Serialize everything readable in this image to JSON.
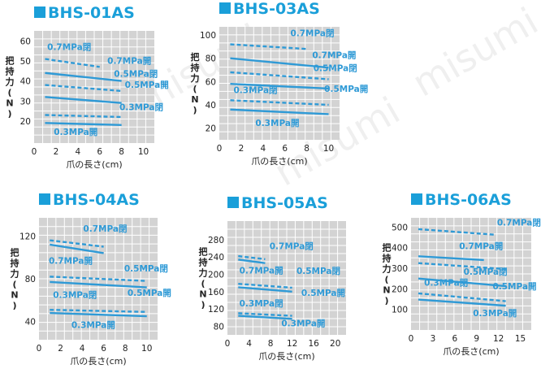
{
  "watermark": [
    "misumi",
    "misumi",
    "misumi"
  ],
  "colors": {
    "title": "#1a9fd9",
    "line": "#2f9ad6",
    "plot_bg": "#d3d3d3",
    "grid": "#ffffff"
  },
  "chart_data": [
    {
      "type": "line",
      "title": "BHS-01AS",
      "xlabel": "爪の長さ(cm)",
      "ylabel": "把持力(N)",
      "xlim": [
        0,
        11
      ],
      "ylim": [
        9,
        65
      ],
      "xticks": [
        0,
        2,
        4,
        6,
        8,
        10
      ],
      "yticks": [
        20,
        30,
        40,
        50,
        60
      ],
      "series": [
        {
          "name": "0.7MPa閉",
          "dashed": true,
          "x": [
            1,
            6
          ],
          "y": [
            51,
            47
          ]
        },
        {
          "name": "0.7MPa開",
          "dashed": false,
          "x": [
            1,
            8
          ],
          "y": [
            44,
            40
          ]
        },
        {
          "name": "0.5MPa閉",
          "dashed": true,
          "x": [
            1,
            8
          ],
          "y": [
            38,
            35
          ]
        },
        {
          "name": "0.5MPa開",
          "dashed": false,
          "x": [
            1,
            8
          ],
          "y": [
            32,
            29
          ]
        },
        {
          "name": "0.3MPa閉",
          "dashed": true,
          "x": [
            1,
            8
          ],
          "y": [
            23,
            22
          ]
        },
        {
          "name": "0.3MPa開",
          "dashed": false,
          "x": [
            1,
            8
          ],
          "y": [
            19,
            18
          ]
        }
      ],
      "annotations": [
        {
          "text": "0.7MPa閉",
          "x": 1.2,
          "y": 55.5
        },
        {
          "text": "0.7MPa開",
          "x": 6.7,
          "y": 48.5
        },
        {
          "text": "0.5MPa閉",
          "x": 7.3,
          "y": 42
        },
        {
          "text": "0.5MPa開",
          "x": 8.3,
          "y": 36.5
        },
        {
          "text": "0.3MPa閉",
          "x": 7.8,
          "y": 25.5
        },
        {
          "text": "0.3MPa開",
          "x": 1.8,
          "y": 13
        }
      ]
    },
    {
      "type": "line",
      "title": "BHS-03AS",
      "xlabel": "爪の長さ(cm)",
      "ylabel": "把持力(N)",
      "xlim": [
        0,
        11
      ],
      "ylim": [
        10,
        107
      ],
      "xticks": [
        0,
        2,
        4,
        6,
        8,
        10
      ],
      "yticks": [
        20,
        40,
        60,
        80,
        100
      ],
      "series": [
        {
          "name": "0.7MPa閉",
          "dashed": true,
          "x": [
            1,
            8
          ],
          "y": [
            92,
            88
          ]
        },
        {
          "name": "0.7MPa開",
          "dashed": false,
          "x": [
            1,
            10
          ],
          "y": [
            80,
            72
          ]
        },
        {
          "name": "0.5MPa閉",
          "dashed": true,
          "x": [
            1,
            10
          ],
          "y": [
            68,
            62
          ]
        },
        {
          "name": "0.5MPa開",
          "dashed": false,
          "x": [
            1,
            10
          ],
          "y": [
            58,
            54
          ]
        },
        {
          "name": "0.3MPa閉",
          "dashed": true,
          "x": [
            1,
            10
          ],
          "y": [
            44,
            40
          ]
        },
        {
          "name": "0.3MPa開",
          "dashed": false,
          "x": [
            1,
            10
          ],
          "y": [
            36,
            32
          ]
        }
      ],
      "annotations": [
        {
          "text": "0.7MPa閉",
          "x": 6.5,
          "y": 99
        },
        {
          "text": "0.7MPa開",
          "x": 8.5,
          "y": 80
        },
        {
          "text": "0.5MPa閉",
          "x": 8.6,
          "y": 69
        },
        {
          "text": "0.5MPa開",
          "x": 9.6,
          "y": 51
        },
        {
          "text": "0.3MPa閉",
          "x": 1.3,
          "y": 50
        },
        {
          "text": "0.3MPa開",
          "x": 3.3,
          "y": 22
        }
      ]
    },
    {
      "type": "line",
      "title": "BHS-04AS",
      "xlabel": "爪の長さ(cm)",
      "ylabel": "把持力(N)",
      "xlim": [
        0,
        11
      ],
      "ylim": [
        23,
        137
      ],
      "xticks": [
        0,
        2,
        4,
        6,
        8,
        10
      ],
      "yticks": [
        40,
        80,
        120
      ],
      "series": [
        {
          "name": "0.7MPa閉",
          "dashed": true,
          "x": [
            1,
            6
          ],
          "y": [
            116,
            110
          ]
        },
        {
          "name": "0.7MPa開",
          "dashed": false,
          "x": [
            1,
            6
          ],
          "y": [
            112,
            104
          ]
        },
        {
          "name": "0.5MPa閉",
          "dashed": true,
          "x": [
            1,
            10
          ],
          "y": [
            82,
            78
          ]
        },
        {
          "name": "0.5MPa開",
          "dashed": false,
          "x": [
            1,
            10
          ],
          "y": [
            77,
            72
          ]
        },
        {
          "name": "0.3MPa閉",
          "dashed": true,
          "x": [
            1,
            10
          ],
          "y": [
            51,
            49
          ]
        },
        {
          "name": "0.3MPa開",
          "dashed": false,
          "x": [
            1,
            10
          ],
          "y": [
            48,
            45
          ]
        }
      ],
      "annotations": [
        {
          "text": "0.7MPa閉",
          "x": 4.1,
          "y": 124
        },
        {
          "text": "0.7MPa開",
          "x": 0.9,
          "y": 94
        },
        {
          "text": "0.5MPa閉",
          "x": 7.9,
          "y": 87
        },
        {
          "text": "0.5MPa開",
          "x": 8.2,
          "y": 64
        },
        {
          "text": "0.3MPa閉",
          "x": 1.3,
          "y": 62
        },
        {
          "text": "0.3MPa開",
          "x": 3.0,
          "y": 34
        }
      ]
    },
    {
      "type": "line",
      "title": "BHS-05AS",
      "xlabel": "爪の長さ(cm)",
      "ylabel": "把持力(N)",
      "xlim": [
        0,
        22
      ],
      "ylim": [
        60,
        323
      ],
      "xticks": [
        0,
        4,
        8,
        12,
        16,
        20
      ],
      "yticks": [
        80,
        120,
        160,
        200,
        240,
        280
      ],
      "series": [
        {
          "name": "0.7MPa閉",
          "dashed": true,
          "x": [
            2,
            7
          ],
          "y": [
            242,
            235
          ]
        },
        {
          "name": "0.7MPa開",
          "dashed": false,
          "x": [
            2,
            7
          ],
          "y": [
            234,
            226
          ]
        },
        {
          "name": "0.5MPa閉",
          "dashed": true,
          "x": [
            2,
            12
          ],
          "y": [
            178,
            169
          ]
        },
        {
          "name": "0.5MPa開",
          "dashed": false,
          "x": [
            2,
            12
          ],
          "y": [
            170,
            160
          ]
        },
        {
          "name": "0.3MPa閉",
          "dashed": true,
          "x": [
            2,
            12
          ],
          "y": [
            110,
            104
          ]
        },
        {
          "name": "0.3MPa開",
          "dashed": false,
          "x": [
            2,
            12
          ],
          "y": [
            104,
            97
          ]
        }
      ],
      "annotations": [
        {
          "text": "0.7MPa閉",
          "x": 7.8,
          "y": 258
        },
        {
          "text": "0.7MPa開",
          "x": 2.2,
          "y": 202
        },
        {
          "text": "0.5MPa閉",
          "x": 12.8,
          "y": 201
        },
        {
          "text": "0.5MPa開",
          "x": 13.7,
          "y": 150
        },
        {
          "text": "0.3MPa閉",
          "x": 2.2,
          "y": 126
        },
        {
          "text": "0.3MPa開",
          "x": 10.0,
          "y": 80
        }
      ]
    },
    {
      "type": "line",
      "title": "BHS-06AS",
      "xlabel": "爪の長さ(cm)",
      "ylabel": "把持力(N)",
      "xlim": [
        0,
        16.5
      ],
      "ylim": [
        0,
        545
      ],
      "xticks": [
        0,
        3,
        6,
        9,
        12,
        15
      ],
      "yticks": [
        100,
        200,
        300,
        400,
        500
      ],
      "series": [
        {
          "name": "0.7MPa閉",
          "dashed": true,
          "x": [
            1,
            11.5
          ],
          "y": [
            490,
            463
          ]
        },
        {
          "name": "0.7MPa開",
          "dashed": false,
          "x": [
            1,
            10
          ],
          "y": [
            358,
            340
          ]
        },
        {
          "name": "0.5MPa閉",
          "dashed": true,
          "x": [
            1,
            13
          ],
          "y": [
            325,
            296
          ]
        },
        {
          "name": "0.5MPa開",
          "dashed": false,
          "x": [
            1,
            13
          ],
          "y": [
            250,
            213
          ]
        },
        {
          "name": "0.3MPa閉",
          "dashed": true,
          "x": [
            1,
            13
          ],
          "y": [
            178,
            140
          ]
        },
        {
          "name": "0.3MPa開",
          "dashed": false,
          "x": [
            1,
            13
          ],
          "y": [
            148,
            118
          ]
        }
      ],
      "annotations": [
        {
          "text": "0.7MPa閉",
          "x": 11.8,
          "y": 508
        },
        {
          "text": "0.7MPa開",
          "x": 6.6,
          "y": 392
        },
        {
          "text": "0.5MPa閉",
          "x": 7.2,
          "y": 269
        },
        {
          "text": "0.5MPa開",
          "x": 11.2,
          "y": 197
        },
        {
          "text": "0.3MPa閉",
          "x": 1.8,
          "y": 216
        },
        {
          "text": "0.3MPa開",
          "x": 8.5,
          "y": 68
        }
      ]
    }
  ]
}
